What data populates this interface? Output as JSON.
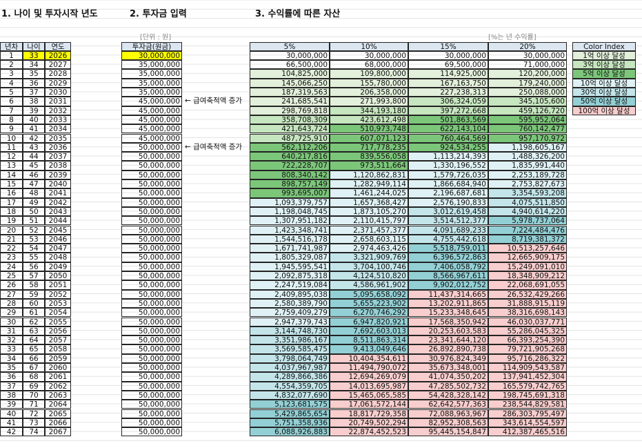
{
  "header": {
    "title1": "1. 나이 및 투자시작 년도",
    "title2": "2. 투자금 입력",
    "title3": "3. 수익률에 따른 자산",
    "unit": "[단위 : 원]",
    "rate_note": "[%는 년 수익률]"
  },
  "table": {
    "columns": [
      "년차",
      "나이",
      "연도",
      "투자금(원금)",
      "5%",
      "10%",
      "15%",
      "20%"
    ],
    "rows": [
      {
        "cells": [
          "1",
          "33",
          "2026",
          "30,000,000",
          "30,000,000",
          "30,000,000",
          "30,000,000",
          "30,000,000"
        ]
      },
      {
        "cells": [
          "2",
          "34",
          "2027",
          "35,000,000",
          "66,500,000",
          "68,000,000",
          "69,500,000",
          "71,000,000"
        ]
      },
      {
        "cells": [
          "3",
          "35",
          "2028",
          "35,000,000",
          "104,825,000",
          "109,800,000",
          "114,925,000",
          "120,200,000"
        ]
      },
      {
        "cells": [
          "4",
          "36",
          "2029",
          "35,000,000",
          "145,066,250",
          "155,780,000",
          "167,163,750",
          "179,240,000"
        ]
      },
      {
        "cells": [
          "5",
          "37",
          "2030",
          "35,000,000",
          "187,319,563",
          "206,358,000",
          "227,238,313",
          "250,088,000"
        ]
      },
      {
        "cells": [
          "6",
          "38",
          "2031",
          "45,000,000",
          "241,685,541",
          "271,993,800",
          "306,324,059",
          "345,105,600"
        ],
        "note": "← 급여축적액 증가"
      },
      {
        "cells": [
          "7",
          "39",
          "2032",
          "45,000,000",
          "298,769,818",
          "344,193,180",
          "397,272,668",
          "459,126,720"
        ]
      },
      {
        "cells": [
          "8",
          "40",
          "2033",
          "45,000,000",
          "358,708,309",
          "423,612,498",
          "501,863,569",
          "595,952,064"
        ]
      },
      {
        "cells": [
          "9",
          "41",
          "2034",
          "45,000,000",
          "421,643,724",
          "510,973,748",
          "622,143,104",
          "760,142,477"
        ]
      },
      {
        "cells": [
          "10",
          "42",
          "2035",
          "45,000,000",
          "487,725,910",
          "607,071,123",
          "760,464,569",
          "957,170,972"
        ]
      },
      {
        "cells": [
          "11",
          "43",
          "2036",
          "50,000,000",
          "562,112,206",
          "717,778,235",
          "924,534,255",
          "1,198,605,167"
        ],
        "note": "← 급여축적액 증가"
      },
      {
        "cells": [
          "12",
          "44",
          "2037",
          "50,000,000",
          "640,217,816",
          "839,556,058",
          "1,113,214,393",
          "1,488,326,200"
        ]
      },
      {
        "cells": [
          "13",
          "45",
          "2038",
          "50,000,000",
          "722,228,707",
          "973,511,664",
          "1,330,196,552",
          "1,835,991,440"
        ]
      },
      {
        "cells": [
          "14",
          "46",
          "2039",
          "50,000,000",
          "808,340,142",
          "1,120,862,831",
          "1,579,726,035",
          "2,253,189,728"
        ]
      },
      {
        "cells": [
          "15",
          "47",
          "2040",
          "50,000,000",
          "898,757,149",
          "1,282,949,114",
          "1,866,684,940",
          "2,753,827,673"
        ]
      },
      {
        "cells": [
          "16",
          "48",
          "2041",
          "50,000,000",
          "993,695,007",
          "1,461,244,025",
          "2,196,687,681",
          "3,354,593,208"
        ]
      },
      {
        "cells": [
          "17",
          "49",
          "2042",
          "50,000,000",
          "1,093,379,757",
          "1,657,368,427",
          "2,576,190,833",
          "4,075,511,850"
        ]
      },
      {
        "cells": [
          "18",
          "50",
          "2043",
          "50,000,000",
          "1,198,048,745",
          "1,873,105,270",
          "3,012,619,458",
          "4,940,614,220"
        ]
      },
      {
        "cells": [
          "19",
          "51",
          "2044",
          "50,000,000",
          "1,307,951,182",
          "2,110,415,797",
          "3,514,512,377",
          "5,978,737,064"
        ]
      },
      {
        "cells": [
          "20",
          "52",
          "2045",
          "50,000,000",
          "1,423,348,741",
          "2,371,457,377",
          "4,091,689,233",
          "7,224,484,476"
        ]
      },
      {
        "cells": [
          "21",
          "53",
          "2046",
          "50,000,000",
          "1,544,516,178",
          "2,658,603,115",
          "4,755,442,618",
          "8,719,381,372"
        ]
      },
      {
        "cells": [
          "22",
          "54",
          "2047",
          "50,000,000",
          "1,671,741,987",
          "2,974,463,426",
          "5,518,759,011",
          "10,513,257,646"
        ]
      },
      {
        "cells": [
          "23",
          "55",
          "2048",
          "50,000,000",
          "1,805,329,087",
          "3,321,909,769",
          "6,396,572,863",
          "12,665,909,175"
        ]
      },
      {
        "cells": [
          "24",
          "56",
          "2049",
          "50,000,000",
          "1,945,595,541",
          "3,704,100,746",
          "7,406,058,792",
          "15,249,091,010"
        ]
      },
      {
        "cells": [
          "25",
          "57",
          "2050",
          "50,000,000",
          "2,092,875,318",
          "4,124,510,820",
          "8,566,967,611",
          "18,348,909,212"
        ]
      },
      {
        "cells": [
          "26",
          "58",
          "2051",
          "50,000,000",
          "2,247,519,084",
          "4,586,961,902",
          "9,902,012,752",
          "22,068,691,055"
        ]
      },
      {
        "cells": [
          "27",
          "59",
          "2052",
          "50,000,000",
          "2,409,895,038",
          "5,095,658,092",
          "11,437,314,665",
          "26,532,429,266"
        ]
      },
      {
        "cells": [
          "28",
          "60",
          "2053",
          "50,000,000",
          "2,580,389,790",
          "5,655,223,902",
          "13,202,911,865",
          "31,888,915,119"
        ]
      },
      {
        "cells": [
          "29",
          "61",
          "2054",
          "50,000,000",
          "2,759,409,279",
          "6,270,746,292",
          "15,233,348,645",
          "38,316,698,143"
        ]
      },
      {
        "cells": [
          "30",
          "62",
          "2055",
          "50,000,000",
          "2,947,379,743",
          "6,947,820,921",
          "17,568,350,942",
          "46,030,037,771"
        ]
      },
      {
        "cells": [
          "31",
          "63",
          "2056",
          "50,000,000",
          "3,144,748,730",
          "7,692,603,013",
          "20,253,603,583",
          "55,286,045,325"
        ]
      },
      {
        "cells": [
          "32",
          "64",
          "2057",
          "50,000,000",
          "3,351,986,167",
          "8,511,863,314",
          "23,341,644,120",
          "66,393,254,390"
        ]
      },
      {
        "cells": [
          "33",
          "65",
          "2058",
          "50,000,000",
          "3,569,585,475",
          "9,413,049,646",
          "26,892,890,738",
          "79,721,905,268"
        ]
      },
      {
        "cells": [
          "34",
          "66",
          "2059",
          "50,000,000",
          "3,798,064,749",
          "10,404,354,611",
          "30,976,824,349",
          "95,716,286,322"
        ]
      },
      {
        "cells": [
          "35",
          "67",
          "2060",
          "50,000,000",
          "4,037,967,987",
          "11,494,790,072",
          "35,673,348,001",
          "114,909,543,587"
        ]
      },
      {
        "cells": [
          "36",
          "68",
          "2061",
          "50,000,000",
          "4,289,866,386",
          "12,694,269,079",
          "41,074,350,202",
          "137,941,452,304"
        ]
      },
      {
        "cells": [
          "37",
          "69",
          "2062",
          "50,000,000",
          "4,554,359,705",
          "14,013,695,987",
          "47,285,502,732",
          "165,579,742,765"
        ]
      },
      {
        "cells": [
          "38",
          "70",
          "2063",
          "50,000,000",
          "4,832,077,690",
          "15,465,065,585",
          "54,428,328,142",
          "198,745,691,318"
        ]
      },
      {
        "cells": [
          "39",
          "71",
          "2064",
          "50,000,000",
          "5,123,681,575",
          "17,061,572,144",
          "62,642,577,363",
          "238,544,829,581"
        ]
      },
      {
        "cells": [
          "40",
          "72",
          "2065",
          "50,000,000",
          "5,429,865,654",
          "18,817,729,358",
          "72,088,963,967",
          "286,303,795,497"
        ]
      },
      {
        "cells": [
          "41",
          "73",
          "2066",
          "50,000,000",
          "5,751,358,936",
          "20,749,502,294",
          "82,952,308,563",
          "343,614,554,597"
        ]
      },
      {
        "cells": [
          "42",
          "74",
          "2067",
          "50,000,000",
          "6,088,926,883",
          "22,874,452,523",
          "95,445,154,847",
          "412,387,465,516"
        ]
      }
    ]
  },
  "color_index": {
    "title": "Color Index",
    "items": [
      "1억 이상 달성",
      "3억 이상 달성",
      "5억 이상 달성",
      "10억 이상 달성",
      "30억 이상 달성",
      "50억 이상 달성",
      "100억 이상 달성"
    ]
  }
}
